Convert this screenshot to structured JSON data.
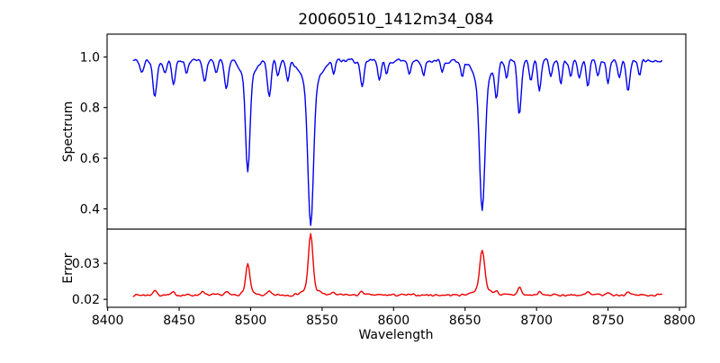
{
  "figure": {
    "background": "#ffffff",
    "frame_color": "#000000"
  },
  "chart_data": {
    "type": "line",
    "title": "20060510_1412m34_084",
    "xlabel": "Wavelength",
    "xlim": [
      8399.6,
      8804.4
    ],
    "xticks": [
      8400,
      8450,
      8500,
      8550,
      8600,
      8650,
      8700,
      8750,
      8800
    ],
    "xtick_labels": [
      "8400",
      "8450",
      "8500",
      "8550",
      "8600",
      "8650",
      "8700",
      "8750",
      "8800"
    ],
    "x_start": 8418,
    "x_end": 8788,
    "x_step": 0.8,
    "grid": false,
    "legend": false,
    "panels": [
      {
        "name": "spectrum",
        "ylabel": "Spectrum",
        "ylim": [
          0.32,
          1.09
        ],
        "yticks": [
          0.4,
          0.6,
          0.8,
          1.0
        ],
        "ytick_labels": [
          "0.4",
          "0.6",
          "0.8",
          "1.0"
        ],
        "series": {
          "name": "spectrum-flux",
          "color": "#0000ee",
          "baseline": 0.985,
          "noise_amp": 0.012,
          "noise_seed": 42,
          "sign": -1,
          "features": [
            {
              "c": 8424,
              "a": 0.05,
              "w": 1.2
            },
            {
              "c": 8433,
              "a": 0.14,
              "w": 1.4
            },
            {
              "c": 8440,
              "a": 0.05,
              "w": 1.0
            },
            {
              "c": 8446,
              "a": 0.09,
              "w": 1.2
            },
            {
              "c": 8455,
              "a": 0.05,
              "w": 1.0
            },
            {
              "c": 8468,
              "a": 0.08,
              "w": 1.2
            },
            {
              "c": 8476,
              "a": 0.05,
              "w": 1.0
            },
            {
              "c": 8483,
              "a": 0.11,
              "w": 1.3
            },
            {
              "c": 8498,
              "a": 0.37,
              "w": 1.5
            },
            {
              "c": 8498,
              "a": 0.07,
              "w": 4.5
            },
            {
              "c": 8513,
              "a": 0.14,
              "w": 1.3
            },
            {
              "c": 8519,
              "a": 0.06,
              "w": 1.0
            },
            {
              "c": 8526,
              "a": 0.07,
              "w": 1.1
            },
            {
              "c": 8542,
              "a": 0.55,
              "w": 1.9
            },
            {
              "c": 8542,
              "a": 0.1,
              "w": 6.0
            },
            {
              "c": 8558,
              "a": 0.05,
              "w": 1.0
            },
            {
              "c": 8578,
              "a": 0.11,
              "w": 1.3
            },
            {
              "c": 8590,
              "a": 0.07,
              "w": 1.1
            },
            {
              "c": 8595,
              "a": 0.06,
              "w": 1.0
            },
            {
              "c": 8611,
              "a": 0.05,
              "w": 1.0
            },
            {
              "c": 8621,
              "a": 0.06,
              "w": 1.0
            },
            {
              "c": 8634,
              "a": 0.05,
              "w": 1.0
            },
            {
              "c": 8648,
              "a": 0.06,
              "w": 1.1
            },
            {
              "c": 8662,
              "a": 0.5,
              "w": 1.8
            },
            {
              "c": 8662,
              "a": 0.1,
              "w": 5.5
            },
            {
              "c": 8672,
              "a": 0.13,
              "w": 1.2
            },
            {
              "c": 8679,
              "a": 0.07,
              "w": 1.0
            },
            {
              "c": 8688,
              "a": 0.21,
              "w": 1.4
            },
            {
              "c": 8696,
              "a": 0.07,
              "w": 1.1
            },
            {
              "c": 8702,
              "a": 0.11,
              "w": 1.2
            },
            {
              "c": 8710,
              "a": 0.06,
              "w": 1.0
            },
            {
              "c": 8717,
              "a": 0.09,
              "w": 1.1
            },
            {
              "c": 8724,
              "a": 0.06,
              "w": 1.0
            },
            {
              "c": 8730,
              "a": 0.07,
              "w": 1.1
            },
            {
              "c": 8736,
              "a": 0.1,
              "w": 1.1
            },
            {
              "c": 8743,
              "a": 0.06,
              "w": 1.0
            },
            {
              "c": 8750,
              "a": 0.09,
              "w": 1.1
            },
            {
              "c": 8758,
              "a": 0.07,
              "w": 1.0
            },
            {
              "c": 8764,
              "a": 0.12,
              "w": 1.2
            },
            {
              "c": 8772,
              "a": 0.06,
              "w": 1.0
            }
          ]
        }
      },
      {
        "name": "error",
        "ylabel": "Error",
        "ylim": [
          0.0178,
          0.0395
        ],
        "yticks": [
          0.02,
          0.03
        ],
        "ytick_labels": [
          "0.02",
          "0.03"
        ],
        "series": {
          "name": "error-flux",
          "color": "#ee0000",
          "baseline": 0.0212,
          "noise_amp": 0.00042,
          "noise_seed": 7,
          "sign": 1,
          "features": [
            {
              "c": 8433,
              "a": 0.0012,
              "w": 1.4
            },
            {
              "c": 8446,
              "a": 0.0007,
              "w": 1.2
            },
            {
              "c": 8466,
              "a": 0.0009,
              "w": 1.3
            },
            {
              "c": 8483,
              "a": 0.0008,
              "w": 1.3
            },
            {
              "c": 8498,
              "a": 0.0075,
              "w": 1.4
            },
            {
              "c": 8498,
              "a": 0.001,
              "w": 3.5
            },
            {
              "c": 8513,
              "a": 0.0009,
              "w": 1.2
            },
            {
              "c": 8542,
              "a": 0.015,
              "w": 1.5
            },
            {
              "c": 8542,
              "a": 0.002,
              "w": 5.0
            },
            {
              "c": 8558,
              "a": 0.0008,
              "w": 1.1
            },
            {
              "c": 8578,
              "a": 0.001,
              "w": 1.3
            },
            {
              "c": 8662,
              "a": 0.0105,
              "w": 1.7
            },
            {
              "c": 8662,
              "a": 0.0018,
              "w": 5.5
            },
            {
              "c": 8672,
              "a": 0.0009,
              "w": 1.2
            },
            {
              "c": 8688,
              "a": 0.0022,
              "w": 1.3
            },
            {
              "c": 8702,
              "a": 0.0008,
              "w": 1.2
            },
            {
              "c": 8736,
              "a": 0.0008,
              "w": 1.1
            },
            {
              "c": 8750,
              "a": 0.0007,
              "w": 1.1
            },
            {
              "c": 8764,
              "a": 0.001,
              "w": 1.2
            }
          ]
        }
      }
    ]
  }
}
